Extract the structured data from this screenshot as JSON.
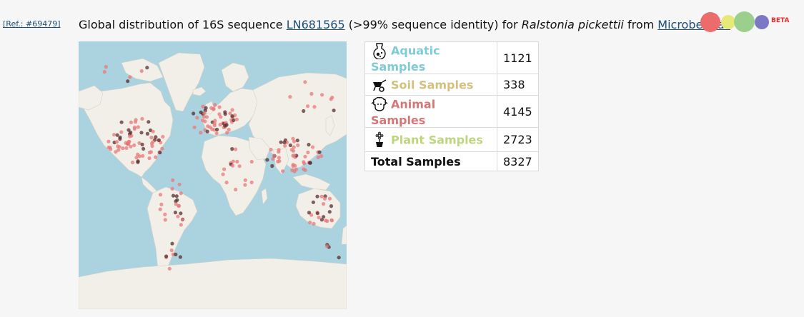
{
  "ref": {
    "label": "[Ref.: #69479]"
  },
  "heading": {
    "prefix": "Global distribution of 16S sequence ",
    "sequence_link": "LN681565",
    "middle": " (>99% sequence identity) for ",
    "species": "Ralstonia pickettii",
    "from": " from ",
    "source_link": "Microbeatlas"
  },
  "logo": {
    "badge": "BETA",
    "dot_colors": [
      "#ec6b6b",
      "#e6e878",
      "#9bd08c",
      "#7b79c6"
    ]
  },
  "map": {
    "ocean_color": "#aad3df",
    "land_color": "#f2efe9",
    "marker_color": "#e8787a",
    "marker_dark_color": "#5a2d2f"
  },
  "stats": {
    "rows": [
      {
        "icon": "aquatic-flask-icon",
        "label": "Aquatic Samples",
        "value": "1121",
        "color": "#7fcbd6"
      },
      {
        "icon": "soil-wheelbarrow-icon",
        "label": "Soil Samples",
        "value": "338",
        "color": "#d2c07e"
      },
      {
        "icon": "animal-sheep-icon",
        "label": "Animal Samples",
        "value": "4145",
        "color": "#d67676"
      },
      {
        "icon": "plant-pot-icon",
        "label": "Plant Samples",
        "value": "2723",
        "color": "#bdd67e"
      }
    ],
    "total_label": "Total Samples",
    "total_value": "8327"
  }
}
